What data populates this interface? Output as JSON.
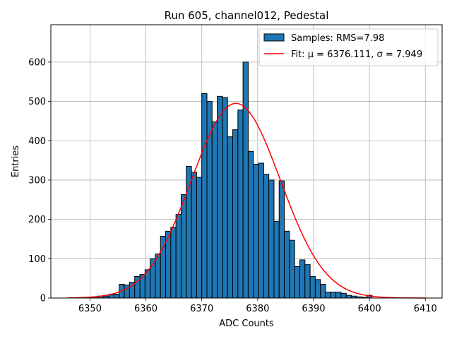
{
  "chart_data": {
    "type": "bar",
    "title": "Run 605, channel012, Pedestal",
    "xlabel": "ADC Counts",
    "ylabel": "Entries",
    "xlim": [
      6343.0,
      6413.0
    ],
    "ylim": [
      0,
      695
    ],
    "xticks": [
      6350,
      6360,
      6370,
      6380,
      6390,
      6400,
      6410
    ],
    "yticks": [
      0,
      100,
      200,
      300,
      400,
      500,
      600
    ],
    "grid": true,
    "legend_position": "top-right",
    "histogram": {
      "name": "Samples: RMS=7.98",
      "color": "#1f77b4",
      "bin_edges": [
        6346.0,
        6346.923,
        6347.846,
        6348.769,
        6349.692,
        6350.615,
        6351.538,
        6352.462,
        6353.385,
        6354.308,
        6355.231,
        6356.154,
        6357.077,
        6358.0,
        6358.923,
        6359.846,
        6360.769,
        6361.692,
        6362.615,
        6363.538,
        6364.462,
        6365.385,
        6366.308,
        6367.231,
        6368.154,
        6369.077,
        6370.0,
        6370.923,
        6371.846,
        6372.769,
        6373.692,
        6374.615,
        6375.538,
        6376.462,
        6377.385,
        6378.308,
        6379.231,
        6380.154,
        6381.077,
        6382.0,
        6382.923,
        6383.846,
        6384.769,
        6385.692,
        6386.615,
        6387.538,
        6388.462,
        6389.385,
        6390.308,
        6391.231,
        6392.154,
        6393.077,
        6394.0,
        6394.923,
        6395.846,
        6396.769,
        6397.692,
        6398.615,
        6399.538,
        6400.462,
        6401.385,
        6402.308,
        6403.231,
        6404.154,
        6405.077,
        6406.0,
        6406.923,
        6407.846,
        6408.769,
        6409.692,
        6410.615
      ],
      "counts": [
        0,
        0,
        0,
        0,
        2,
        3,
        5,
        5,
        8,
        10,
        35,
        33,
        40,
        55,
        60,
        72,
        100,
        112,
        157,
        170,
        180,
        213,
        263,
        335,
        320,
        307,
        520,
        500,
        448,
        513,
        510,
        410,
        428,
        478,
        600,
        373,
        340,
        343,
        315,
        300,
        195,
        298,
        170,
        147,
        80,
        97,
        85,
        55,
        47,
        35,
        15,
        15,
        15,
        12,
        7,
        5,
        3,
        2,
        7,
        0,
        0,
        0,
        0,
        0,
        0,
        0,
        0,
        0,
        0,
        0
      ]
    },
    "fit": {
      "name": "Fit: $\\mu$ = 6376.111, $\\sigma$ = 7.949",
      "label_text": "Fit: μ = 6376.111, σ = 7.949",
      "color": "#ff0000",
      "mu": 6376.111,
      "sigma": 7.949,
      "amplitude": 495,
      "x_range": [
        6346.0,
        6410.0
      ]
    }
  }
}
